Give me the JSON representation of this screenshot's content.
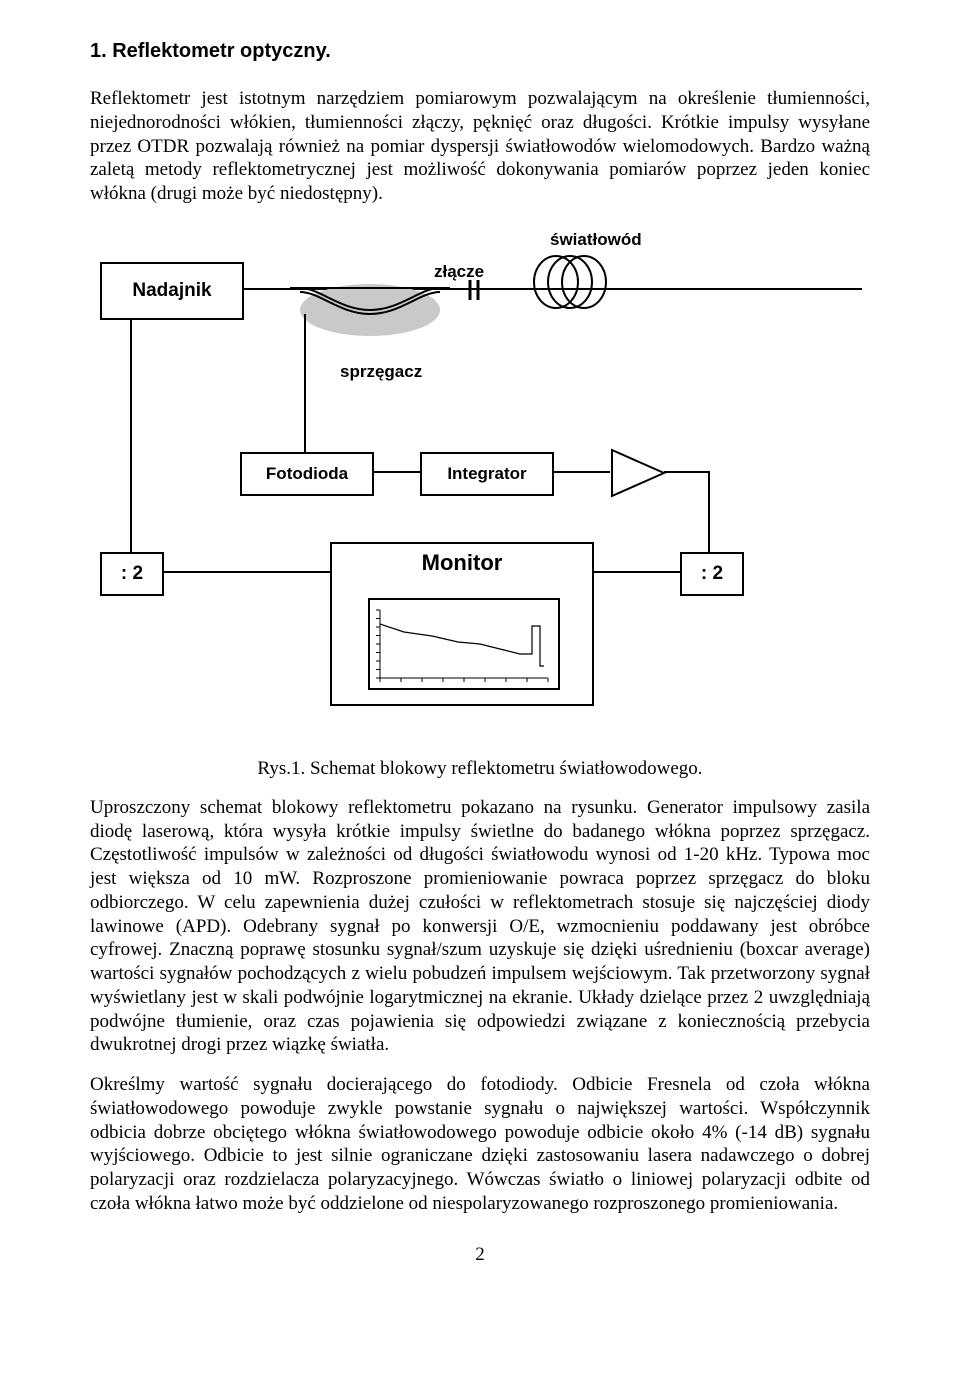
{
  "section_number_title": "1. Reflektometr optyczny.",
  "para_intro": "Reflektometr jest istotnym narzędziem pomiarowym pozwalającym na określenie tłumienności, niejednorodności włókien, tłumienności złączy, pęknięć oraz długości. Krótkie impulsy wysyłane przez OTDR pozwalają również na pomiar dyspersji światłowodów wielomodowych. Bardzo ważną zaletą metody reflektometrycznej jest możliwość dokonywania pomiarów poprzez jeden koniec włókna (drugi może być niedostępny).",
  "diagram": {
    "type": "flowchart",
    "background_color": "#ffffff",
    "stroke_color": "#000000",
    "font_family": "Arial",
    "label_fontsize": 17,
    "nodes": {
      "nadajnik": "Nadajnik",
      "swiatlowod": "światłowód",
      "zlacze": "złącze",
      "sprzegacz": "sprzęgacz",
      "fotodioda": "Fotodioda",
      "integrator": "Integrator",
      "div2_left": ": 2",
      "div2_right": ": 2",
      "monitor": "Monitor"
    },
    "coupler_fill": "#c9c9c9",
    "trace": {
      "points": [
        [
          0,
          14
        ],
        [
          24,
          22
        ],
        [
          52,
          26
        ],
        [
          78,
          32
        ],
        [
          100,
          34
        ],
        [
          124,
          40
        ],
        [
          140,
          44
        ],
        [
          152,
          44
        ],
        [
          152,
          16
        ],
        [
          160,
          16
        ],
        [
          160,
          56
        ],
        [
          164,
          56
        ]
      ],
      "stroke": "#000000",
      "stroke_width": 1.2,
      "y_ticks": 8,
      "x_ticks": 8
    }
  },
  "caption": "Rys.1. Schemat blokowy reflektometru światłowodowego.",
  "para_desc1": "Uproszczony schemat blokowy reflektometru pokazano na rysunku. Generator impulsowy zasila diodę laserową, która wysyła krótkie impulsy świetlne do badanego włókna poprzez sprzęgacz. Częstotliwość impulsów w zależności od długości światłowodu wynosi od 1-20 kHz. Typowa moc jest większa od 10 mW. Rozproszone promieniowanie powraca poprzez sprzęgacz do bloku odbiorczego. W celu zapewnienia dużej czułości w reflektometrach stosuje się najczęściej diody lawinowe (APD). Odebrany sygnał po konwersji O/E, wzmocnieniu poddawany jest obróbce cyfrowej. Znaczną poprawę stosunku sygnał/szum uzyskuje się dzięki uśrednieniu (boxcar average) wartości sygnałów pochodzących z wielu pobudzeń impulsem wejściowym. Tak przetworzony sygnał wyświetlany jest w skali podwójnie logarytmicznej na ekranie. Układy dzielące przez 2 uwzględniają podwójne tłumienie, oraz czas pojawienia się odpowiedzi związane z koniecznością przebycia dwukrotnej drogi przez wiązkę światła.",
  "para_desc2": "Określmy wartość sygnału docierającego do fotodiody. Odbicie Fresnela od czoła włókna światłowodowego powoduje zwykle powstanie sygnału o największej wartości. Współczynnik odbicia dobrze obciętego włókna światłowodowego powoduje odbicie około 4% (-14 dB) sygnału wyjściowego. Odbicie to jest silnie ograniczane dzięki zastosowaniu lasera nadawczego o dobrej polaryzacji oraz rozdzielacza polaryzacyjnego. Wówczas światło o liniowej polaryzacji odbite od czoła włókna łatwo może być oddzielone od niespolaryzowanego rozproszonego promieniowania.",
  "page_number": "2"
}
